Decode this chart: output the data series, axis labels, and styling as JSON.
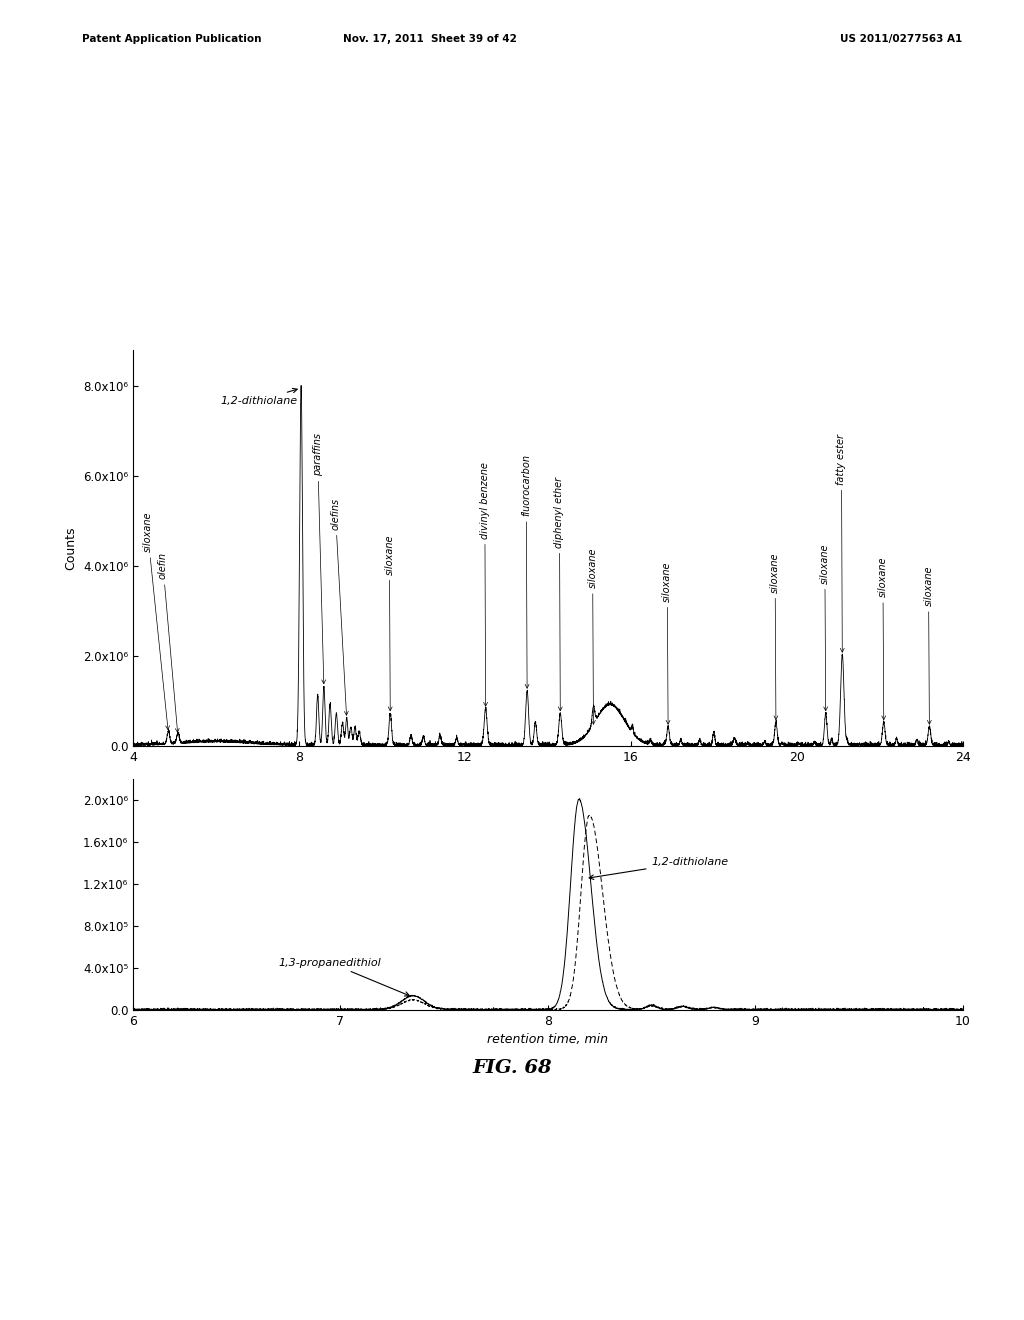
{
  "background_color": "#ffffff",
  "header_left": "Patent Application Publication",
  "header_mid": "Nov. 17, 2011  Sheet 39 of 42",
  "header_right": "US 2011/0277563 A1",
  "figure_label": "FIG. 68",
  "top_plot": {
    "xlim": [
      4,
      24
    ],
    "ylim": [
      0,
      8800000.0
    ],
    "xticks": [
      4,
      8,
      12,
      16,
      20,
      24
    ],
    "yticks": [
      0.0,
      2000000.0,
      4000000.0,
      6000000.0,
      8000000.0
    ],
    "ytick_labels": [
      "0.0",
      "2.0x10⁶",
      "4.0x10⁶",
      "6.0x10⁶",
      "8.0x10⁶"
    ],
    "ylabel": "Counts"
  },
  "bottom_plot": {
    "xlim": [
      6,
      10
    ],
    "ylim": [
      0,
      2200000.0
    ],
    "xticks": [
      6,
      7,
      8,
      9,
      10
    ],
    "yticks": [
      0.0,
      400000.0,
      800000.0,
      1200000.0,
      1600000.0,
      2000000.0
    ],
    "ytick_labels": [
      "0.0",
      "4.0x10⁵",
      "8.0x10⁵",
      "1.2x10⁶",
      "1.6x10⁶",
      "2.0x10⁶"
    ],
    "xlabel": "retention time, min"
  }
}
